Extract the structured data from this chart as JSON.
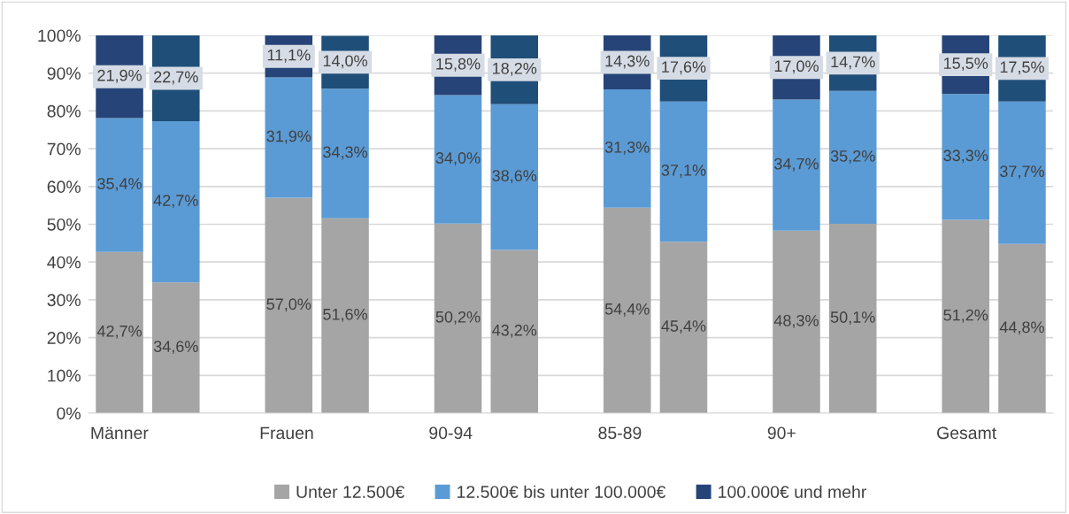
{
  "chart_data": {
    "type": "bar",
    "stacked": true,
    "categories": [
      "Männer",
      null,
      null,
      "Frauen",
      null,
      null,
      "90-94",
      null,
      null,
      "85-89",
      null,
      null,
      "90+",
      null,
      null,
      "Gesamt",
      null
    ],
    "series": [
      {
        "name": "Unter 12.500€",
        "color": "#a5a5a5",
        "values": [
          42.7,
          34.6,
          null,
          57.0,
          51.6,
          null,
          50.2,
          43.2,
          null,
          54.4,
          45.4,
          null,
          48.3,
          50.1,
          null,
          51.2,
          44.8
        ],
        "value_labels": [
          "42,7%",
          "34,6%",
          null,
          "57,0%",
          "51,6%",
          null,
          "50,2%",
          "43,2%",
          null,
          "54,4%",
          "45,4%",
          null,
          "48,3%",
          "50,1%",
          null,
          "51,2%",
          "44,8%"
        ]
      },
      {
        "name": "12.500€ bis unter 100.000€",
        "color": "#5b9bd5",
        "values": [
          35.4,
          42.7,
          null,
          31.9,
          34.3,
          null,
          34.0,
          38.6,
          null,
          31.3,
          37.1,
          null,
          34.7,
          35.2,
          null,
          33.3,
          37.7
        ],
        "value_labels": [
          "35,4%",
          "42,7%",
          null,
          "31,9%",
          "34,3%",
          null,
          "34,0%",
          "38,6%",
          null,
          "31,3%",
          "37,1%",
          null,
          "34,7%",
          "35,2%",
          null,
          "33,3%",
          "37,7%"
        ]
      },
      {
        "name": "100.000€ und mehr",
        "color": "#264478",
        "colors": [
          "#264478",
          "#1f4e79",
          null,
          "#264478",
          "#1f4e79",
          null,
          "#264478",
          "#1f4e79",
          null,
          "#264478",
          "#1f4e79",
          null,
          "#264478",
          "#1f4e79",
          null,
          "#264478",
          "#1f4e79"
        ],
        "values": [
          21.9,
          22.7,
          null,
          11.1,
          14.0,
          null,
          15.8,
          18.2,
          null,
          14.3,
          17.6,
          null,
          17.0,
          14.7,
          null,
          15.5,
          17.5
        ],
        "value_labels": [
          "21,9%",
          "22,7%",
          null,
          "11,1%",
          "14,0%",
          null,
          "15,8%",
          "18,2%",
          null,
          "14,3%",
          "17,6%",
          null,
          "17,0%",
          "14,7%",
          null,
          "15,5%",
          "17,5%"
        ]
      }
    ],
    "ylim": [
      0,
      100
    ],
    "yticks": [
      {
        "value": 0,
        "label": "0%"
      },
      {
        "value": 10,
        "label": "10%"
      },
      {
        "value": 20,
        "label": "20%"
      },
      {
        "value": 30,
        "label": "30%"
      },
      {
        "value": 40,
        "label": "40%"
      },
      {
        "value": 50,
        "label": "50%"
      },
      {
        "value": 60,
        "label": "60%"
      },
      {
        "value": 70,
        "label": "70%"
      },
      {
        "value": 80,
        "label": "80%"
      },
      {
        "value": 90,
        "label": "90%"
      },
      {
        "value": 100,
        "label": "100%"
      }
    ],
    "grid": "y",
    "legend": "bottom"
  }
}
